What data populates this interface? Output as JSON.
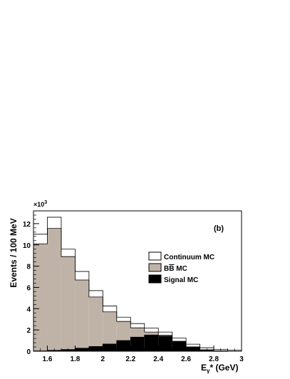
{
  "chart_data": {
    "type": "bar",
    "panel_label": "(b)",
    "xlabel": "E",
    "xlabel_sub": "γ",
    "xlabel_suffix": "* (GeV)",
    "ylabel": "Events / 100 MeV",
    "y_multiplier_base": "×10",
    "y_multiplier_exp": "3",
    "xlim": [
      1.5,
      3.0
    ],
    "ylim": [
      0,
      13.2
    ],
    "x_ticks": [
      1.6,
      1.8,
      2.0,
      2.2,
      2.4,
      2.6,
      2.8,
      3.0
    ],
    "x_tick_labels": [
      "1.6",
      "1.8",
      "2",
      "2.2",
      "2.4",
      "2.6",
      "2.8",
      "3"
    ],
    "y_ticks": [
      0,
      2,
      4,
      6,
      8,
      10,
      12
    ],
    "y_tick_labels": [
      "0",
      "2",
      "4",
      "6",
      "8",
      "10",
      "12"
    ],
    "bin_edges": [
      1.5,
      1.6,
      1.7,
      1.8,
      1.9,
      2.0,
      2.1,
      2.2,
      2.3,
      2.4,
      2.5,
      2.6,
      2.7,
      2.8,
      2.9,
      3.0
    ],
    "stacked": true,
    "legend_position": "right",
    "series": [
      {
        "name": "Signal MC",
        "color": "#000000",
        "values": [
          0.03,
          0.08,
          0.16,
          0.28,
          0.44,
          0.68,
          1.0,
          1.32,
          1.52,
          1.42,
          0.92,
          0.4,
          0.13,
          0.04,
          0.01
        ]
      },
      {
        "name": "BB MC",
        "legend_overline": "B",
        "color": "#bfb3a8",
        "values": [
          10.07,
          11.47,
          8.74,
          6.42,
          4.66,
          3.02,
          1.8,
          0.88,
          0.28,
          0.08,
          0.02,
          0.01,
          0.0,
          0.0,
          0.0
        ]
      },
      {
        "name": "Continuum MC",
        "color": "#ffffff",
        "values": [
          0.9,
          1.05,
          0.7,
          0.8,
          0.6,
          0.55,
          0.4,
          0.4,
          0.38,
          0.3,
          0.3,
          0.25,
          0.2,
          0.12,
          0.08
        ]
      }
    ],
    "legend_labels": [
      "Continuum MC",
      "MC",
      "Signal MC"
    ]
  }
}
